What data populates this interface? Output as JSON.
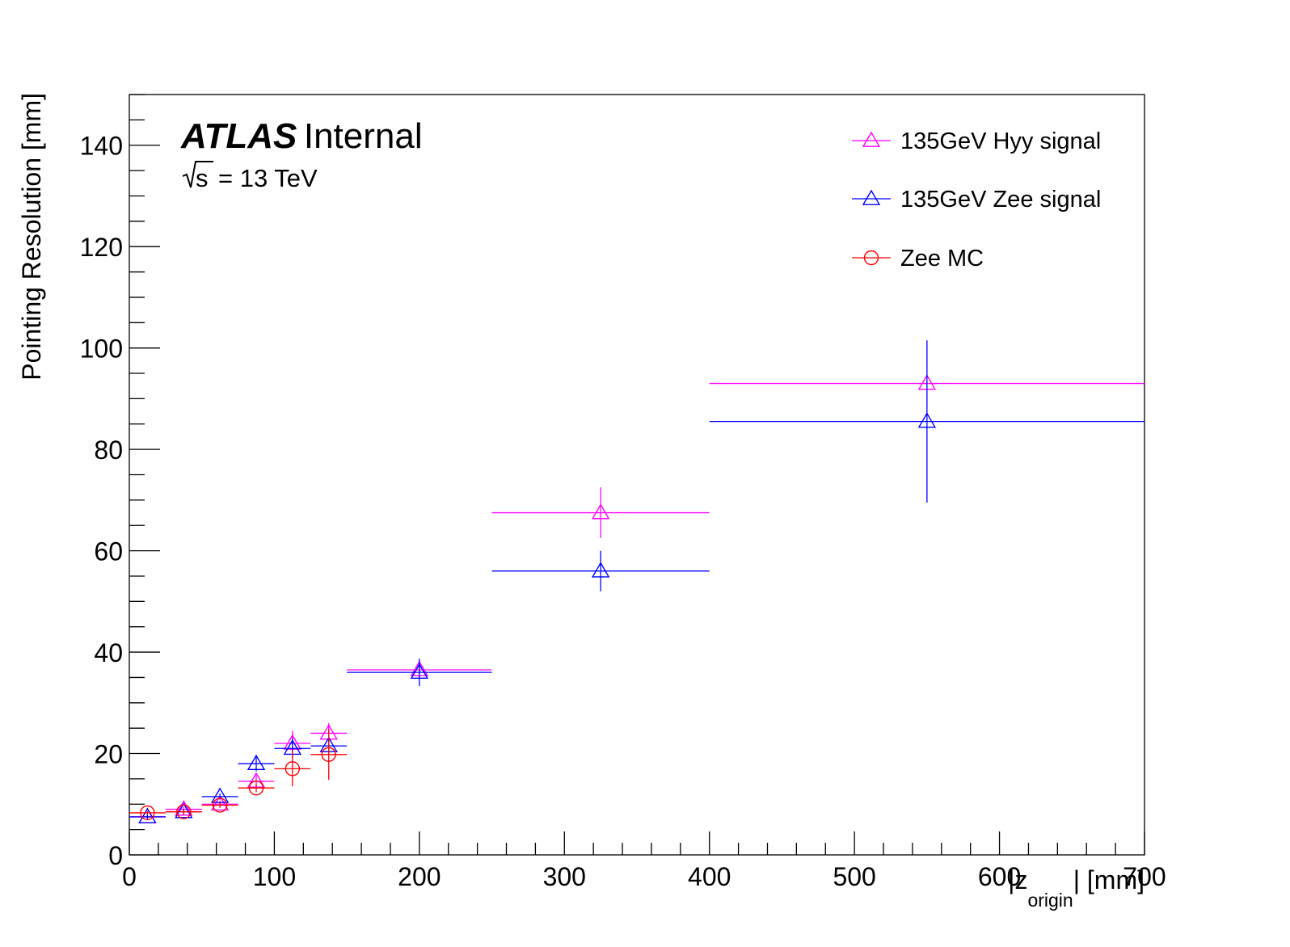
{
  "chart_data": {
    "type": "scatter",
    "xlabel": "|z_origin| [mm]",
    "xlabel_parts": {
      "before": "|z",
      "sub": "origin",
      "after": "| [mm]"
    },
    "ylabel": "Pointing Resolution [mm]",
    "xlim": [
      0,
      700
    ],
    "ylim": [
      0,
      150
    ],
    "x_ticks": [
      0,
      100,
      200,
      300,
      400,
      500,
      600,
      700
    ],
    "x_tick_labels": [
      "0",
      "100",
      "200",
      "300",
      "400",
      "500",
      "600",
      "700"
    ],
    "y_ticks": [
      0,
      20,
      40,
      60,
      80,
      100,
      120,
      140
    ],
    "y_tick_labels": [
      "0",
      "20",
      "40",
      "60",
      "80",
      "100",
      "120",
      "140"
    ],
    "grid": false,
    "legend_position": "top-right",
    "annotations": {
      "experiment": "ATLAS",
      "status": "Internal",
      "energy_sqrt": "s",
      "energy_value": "= 13 TeV"
    },
    "series": [
      {
        "name": "135GeV Hyy signal",
        "color": "#ff00ff",
        "marker": "open-triangle",
        "points": [
          {
            "x": 12.5,
            "xerr": 12.5,
            "y": 7.5,
            "yerr": 0.4
          },
          {
            "x": 37.5,
            "xerr": 12.5,
            "y": 9.0,
            "yerr": 0.5
          },
          {
            "x": 62.5,
            "xerr": 12.5,
            "y": 10.0,
            "yerr": 0.7
          },
          {
            "x": 87.5,
            "xerr": 12.5,
            "y": 14.5,
            "yerr": 1.2
          },
          {
            "x": 112.5,
            "xerr": 12.5,
            "y": 22.0,
            "yerr": 2.5
          },
          {
            "x": 137.5,
            "xerr": 12.5,
            "y": 24.0,
            "yerr": 2.0
          },
          {
            "x": 200,
            "xerr": 50,
            "y": 36.5,
            "yerr": 2.0
          },
          {
            "x": 325,
            "xerr": 75,
            "y": 67.5,
            "yerr": 5.0
          },
          {
            "x": 550,
            "xerr": 150,
            "y": 93.0,
            "yerr": 0
          }
        ]
      },
      {
        "name": "135GeV Zee signal",
        "color": "#0000ff",
        "marker": "open-triangle",
        "points": [
          {
            "x": 12.5,
            "xerr": 12.5,
            "y": 7.5,
            "yerr": 0.5
          },
          {
            "x": 37.5,
            "xerr": 12.5,
            "y": 8.5,
            "yerr": 0.5
          },
          {
            "x": 62.5,
            "xerr": 12.5,
            "y": 11.5,
            "yerr": 0.6
          },
          {
            "x": 87.5,
            "xerr": 12.5,
            "y": 18.0,
            "yerr": 1.5
          },
          {
            "x": 112.5,
            "xerr": 12.5,
            "y": 21.0,
            "yerr": 2.0
          },
          {
            "x": 137.5,
            "xerr": 12.5,
            "y": 21.5,
            "yerr": 1.5
          },
          {
            "x": 200,
            "xerr": 50,
            "y": 36.0,
            "yerr": 2.7
          },
          {
            "x": 325,
            "xerr": 75,
            "y": 56.0,
            "yerr": 4.0
          },
          {
            "x": 550,
            "xerr": 150,
            "y": 85.5,
            "yerr": 16.0
          }
        ]
      },
      {
        "name": "Zee MC",
        "color": "#ff0000",
        "marker": "open-circle",
        "points": [
          {
            "x": 12.5,
            "xerr": 12.5,
            "y": 8.3,
            "yerr": 0.3
          },
          {
            "x": 37.5,
            "xerr": 12.5,
            "y": 8.5,
            "yerr": 0.4
          },
          {
            "x": 62.5,
            "xerr": 12.5,
            "y": 9.8,
            "yerr": 0.5
          },
          {
            "x": 87.5,
            "xerr": 12.5,
            "y": 13.2,
            "yerr": 0.8
          },
          {
            "x": 112.5,
            "xerr": 12.5,
            "y": 17.0,
            "yerr": 3.5
          },
          {
            "x": 137.5,
            "xerr": 12.5,
            "y": 19.8,
            "yerr": 5.0
          }
        ]
      }
    ]
  }
}
